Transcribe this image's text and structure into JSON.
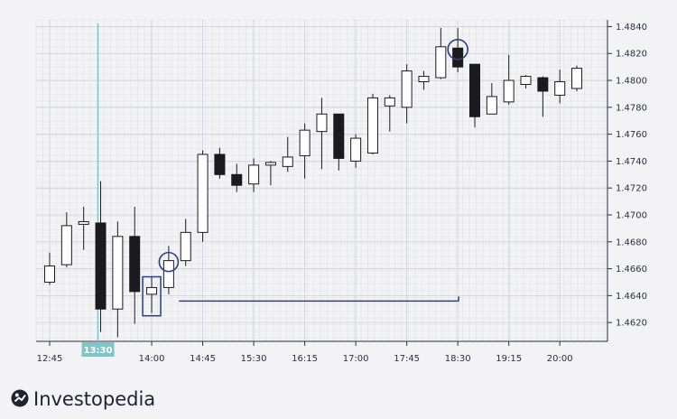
{
  "brand": {
    "name": "Investopedia",
    "logo_icon": "investopedia-logo-icon"
  },
  "chart_data": {
    "type": "candlestick",
    "title": "",
    "xlabel": "",
    "ylabel": "",
    "ylim": [
      1.4606,
      1.4845
    ],
    "y_ticks": [
      "1.4620",
      "1.4640",
      "1.4660",
      "1.4680",
      "1.4700",
      "1.4720",
      "1.4740",
      "1.4760",
      "1.4780",
      "1.4800",
      "1.4820",
      "1.4840"
    ],
    "y_tick_values": [
      1.462,
      1.464,
      1.466,
      1.468,
      1.47,
      1.472,
      1.474,
      1.476,
      1.478,
      1.48,
      1.482,
      1.484
    ],
    "x_ticks": [
      "12:45",
      "14:00",
      "14:45",
      "15:30",
      "16:15",
      "17:00",
      "17:45",
      "18:30",
      "19:15",
      "20:00"
    ],
    "x_tick_index": [
      0,
      6,
      9,
      12,
      15,
      18,
      21,
      24,
      27,
      30
    ],
    "highlight_time": {
      "label": "13:30",
      "index": 3,
      "color": "#7ec4c8"
    },
    "bullish_color": "#ffffff",
    "bearish_color": "#1b1b1f",
    "candles": [
      {
        "o": 1.465,
        "h": 1.4672,
        "l": 1.4648,
        "c": 1.4662
      },
      {
        "o": 1.4663,
        "h": 1.4702,
        "l": 1.4661,
        "c": 1.4692
      },
      {
        "o": 1.4693,
        "h": 1.4706,
        "l": 1.4674,
        "c": 1.4695
      },
      {
        "o": 1.4694,
        "h": 1.4725,
        "l": 1.4613,
        "c": 1.463
      },
      {
        "o": 1.463,
        "h": 1.4695,
        "l": 1.4609,
        "c": 1.4684
      },
      {
        "o": 1.4684,
        "h": 1.4706,
        "l": 1.4619,
        "c": 1.4643
      },
      {
        "o": 1.4641,
        "h": 1.4654,
        "l": 1.4627,
        "c": 1.4646
      },
      {
        "o": 1.4646,
        "h": 1.4677,
        "l": 1.4641,
        "c": 1.4666
      },
      {
        "o": 1.4666,
        "h": 1.4697,
        "l": 1.4662,
        "c": 1.4687
      },
      {
        "o": 1.4687,
        "h": 1.4748,
        "l": 1.468,
        "c": 1.4745
      },
      {
        "o": 1.4745,
        "h": 1.475,
        "l": 1.4727,
        "c": 1.473
      },
      {
        "o": 1.473,
        "h": 1.4738,
        "l": 1.4717,
        "c": 1.4722
      },
      {
        "o": 1.4723,
        "h": 1.4742,
        "l": 1.4717,
        "c": 1.4737
      },
      {
        "o": 1.4737,
        "h": 1.474,
        "l": 1.4722,
        "c": 1.4739
      },
      {
        "o": 1.4736,
        "h": 1.4758,
        "l": 1.4732,
        "c": 1.4743
      },
      {
        "o": 1.4744,
        "h": 1.4768,
        "l": 1.4727,
        "c": 1.4763
      },
      {
        "o": 1.4762,
        "h": 1.4787,
        "l": 1.4734,
        "c": 1.4775
      },
      {
        "o": 1.4775,
        "h": 1.4775,
        "l": 1.4733,
        "c": 1.4742
      },
      {
        "o": 1.474,
        "h": 1.476,
        "l": 1.4735,
        "c": 1.4757
      },
      {
        "o": 1.4746,
        "h": 1.479,
        "l": 1.4745,
        "c": 1.4787
      },
      {
        "o": 1.4781,
        "h": 1.4789,
        "l": 1.4762,
        "c": 1.4787
      },
      {
        "o": 1.478,
        "h": 1.4812,
        "l": 1.4768,
        "c": 1.4807
      },
      {
        "o": 1.4799,
        "h": 1.4807,
        "l": 1.4793,
        "c": 1.4803
      },
      {
        "o": 1.4802,
        "h": 1.4839,
        "l": 1.4801,
        "c": 1.4825
      },
      {
        "o": 1.4824,
        "h": 1.4839,
        "l": 1.4806,
        "c": 1.481
      },
      {
        "o": 1.4812,
        "h": 1.4812,
        "l": 1.4765,
        "c": 1.4773
      },
      {
        "o": 1.4775,
        "h": 1.4798,
        "l": 1.4775,
        "c": 1.4788
      },
      {
        "o": 1.4784,
        "h": 1.4819,
        "l": 1.4782,
        "c": 1.48
      },
      {
        "o": 1.4797,
        "h": 1.4804,
        "l": 1.4794,
        "c": 1.4803
      },
      {
        "o": 1.4802,
        "h": 1.4803,
        "l": 1.4773,
        "c": 1.4792
      },
      {
        "o": 1.4789,
        "h": 1.4808,
        "l": 1.4783,
        "c": 1.4799
      },
      {
        "o": 1.4794,
        "h": 1.4811,
        "l": 1.4792,
        "c": 1.4809
      }
    ],
    "annotations": {
      "circle_1": {
        "index": 7,
        "value": 1.4665
      },
      "circle_2": {
        "index": 24,
        "value": 1.4823
      },
      "box": {
        "index": 6,
        "from": 1.4625,
        "to": 1.4654
      },
      "range_line": {
        "from_index": 7.6,
        "to_index": 24,
        "value": 1.4636
      },
      "color": "#2c3e86"
    }
  }
}
